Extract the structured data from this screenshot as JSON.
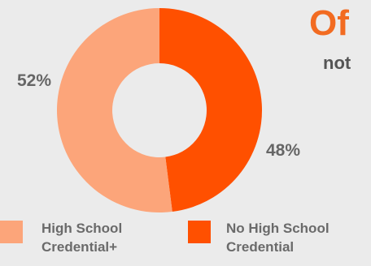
{
  "title_fragment": "Of",
  "subtitle_fragment": "not",
  "chart_data": {
    "type": "pie",
    "donut": true,
    "categories": [
      "High School Credential+",
      "No High School Credential"
    ],
    "values": [
      52,
      48
    ],
    "data_labels": [
      "52%",
      "48%"
    ],
    "colors": [
      "#fca57a",
      "#ff5000"
    ],
    "legend": {
      "placement": "bottom",
      "entries": [
        {
          "line1": "High School",
          "line2": "Credential+",
          "color": "#fca57a"
        },
        {
          "line1": "No High School",
          "line2": "Credential",
          "color": "#ff5000"
        }
      ]
    }
  }
}
